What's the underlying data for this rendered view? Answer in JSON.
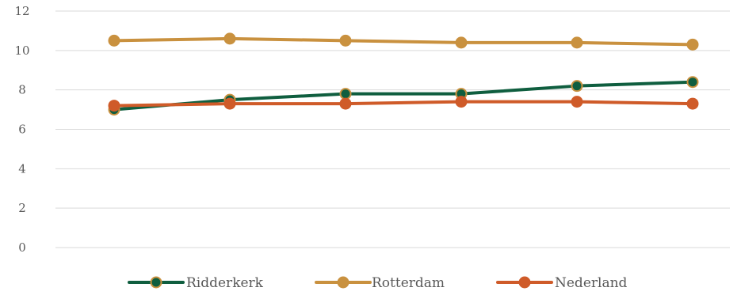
{
  "chart_data": {
    "type": "line",
    "categories": [
      "",
      "",
      "",
      "",
      "",
      ""
    ],
    "ylim": [
      0,
      12
    ],
    "yticks": [
      0,
      2,
      4,
      6,
      8,
      10,
      12
    ],
    "y_tick_labels": [
      "0",
      "2",
      "4",
      "6",
      "8",
      "10",
      "12"
    ],
    "grid": true,
    "legend_position": "bottom",
    "series": [
      {
        "name": "Ridderkerk",
        "color": "#0f5e3f",
        "marker_edge": "#c9913f",
        "values": [
          7.0,
          7.5,
          7.8,
          7.8,
          8.2,
          8.4
        ]
      },
      {
        "name": "Rotterdam",
        "color": "#c9913f",
        "marker_edge": "#c9913f",
        "values": [
          10.5,
          10.6,
          10.5,
          10.4,
          10.4,
          10.3
        ]
      },
      {
        "name": "Nederland",
        "color": "#cf5b29",
        "marker_edge": "#cf5b29",
        "values": [
          7.2,
          7.3,
          7.3,
          7.4,
          7.4,
          7.3
        ]
      }
    ]
  }
}
